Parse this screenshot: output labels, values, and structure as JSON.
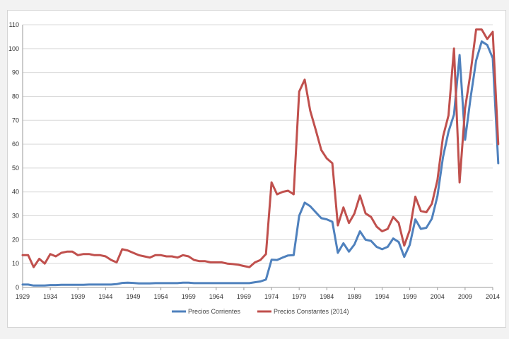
{
  "chart_data": {
    "type": "line",
    "title": "",
    "xlabel": "",
    "ylabel": "",
    "xlim": [
      1929,
      2014
    ],
    "ylim": [
      0,
      110
    ],
    "y_ticks": [
      0,
      10,
      20,
      30,
      40,
      50,
      60,
      70,
      80,
      90,
      100,
      110
    ],
    "x_ticks": [
      1929,
      1934,
      1939,
      1944,
      1949,
      1954,
      1959,
      1964,
      1969,
      1974,
      1979,
      1984,
      1989,
      1994,
      1999,
      2004,
      2009,
      2014
    ],
    "grid": "horizontal",
    "legend_position": "bottom",
    "series": [
      {
        "name": "Precios Corrientes",
        "color": "#4f81bd",
        "points": [
          [
            1929,
            1.2
          ],
          [
            1930,
            1.2
          ],
          [
            1931,
            0.8
          ],
          [
            1932,
            0.8
          ],
          [
            1933,
            0.8
          ],
          [
            1934,
            1.0
          ],
          [
            1935,
            1.0
          ],
          [
            1936,
            1.1
          ],
          [
            1937,
            1.1
          ],
          [
            1938,
            1.1
          ],
          [
            1939,
            1.1
          ],
          [
            1940,
            1.1
          ],
          [
            1941,
            1.2
          ],
          [
            1942,
            1.2
          ],
          [
            1943,
            1.2
          ],
          [
            1944,
            1.2
          ],
          [
            1945,
            1.2
          ],
          [
            1946,
            1.4
          ],
          [
            1947,
            1.9
          ],
          [
            1948,
            2.0
          ],
          [
            1949,
            1.9
          ],
          [
            1950,
            1.7
          ],
          [
            1951,
            1.7
          ],
          [
            1952,
            1.7
          ],
          [
            1953,
            1.8
          ],
          [
            1954,
            1.8
          ],
          [
            1955,
            1.8
          ],
          [
            1956,
            1.8
          ],
          [
            1957,
            1.8
          ],
          [
            1958,
            2.0
          ],
          [
            1959,
            2.0
          ],
          [
            1960,
            1.8
          ],
          [
            1961,
            1.8
          ],
          [
            1962,
            1.8
          ],
          [
            1963,
            1.8
          ],
          [
            1964,
            1.8
          ],
          [
            1965,
            1.8
          ],
          [
            1966,
            1.8
          ],
          [
            1967,
            1.8
          ],
          [
            1968,
            1.8
          ],
          [
            1969,
            1.8
          ],
          [
            1970,
            1.8
          ],
          [
            1971,
            2.2
          ],
          [
            1972,
            2.5
          ],
          [
            1973,
            3.3
          ],
          [
            1974,
            11.6
          ],
          [
            1975,
            11.5
          ],
          [
            1976,
            12.5
          ],
          [
            1977,
            13.4
          ],
          [
            1978,
            13.5
          ],
          [
            1979,
            30.0
          ],
          [
            1980,
            35.5
          ],
          [
            1981,
            34.0
          ],
          [
            1982,
            31.5
          ],
          [
            1983,
            29.0
          ],
          [
            1984,
            28.5
          ],
          [
            1985,
            27.5
          ],
          [
            1986,
            14.5
          ],
          [
            1987,
            18.5
          ],
          [
            1988,
            15.0
          ],
          [
            1989,
            18.0
          ],
          [
            1990,
            23.5
          ],
          [
            1991,
            20.0
          ],
          [
            1992,
            19.5
          ],
          [
            1993,
            17.0
          ],
          [
            1994,
            16.0
          ],
          [
            1995,
            17.0
          ],
          [
            1996,
            20.5
          ],
          [
            1997,
            19.0
          ],
          [
            1998,
            12.8
          ],
          [
            1999,
            17.8
          ],
          [
            2000,
            28.5
          ],
          [
            2001,
            24.5
          ],
          [
            2002,
            25.0
          ],
          [
            2003,
            28.8
          ],
          [
            2004,
            38.3
          ],
          [
            2005,
            54.5
          ],
          [
            2006,
            65.2
          ],
          [
            2007,
            72.4
          ],
          [
            2008,
            97.3
          ],
          [
            2009,
            61.8
          ],
          [
            2010,
            79.5
          ],
          [
            2011,
            95.0
          ],
          [
            2012,
            103.0
          ],
          [
            2013,
            101.5
          ],
          [
            2014,
            96.0
          ],
          [
            2015,
            52.0
          ]
        ]
      },
      {
        "name": "Precios Constantes (2014)",
        "color": "#c0504d",
        "points": [
          [
            1929,
            13.5
          ],
          [
            1930,
            13.5
          ],
          [
            1931,
            8.5
          ],
          [
            1932,
            12.0
          ],
          [
            1933,
            10.0
          ],
          [
            1934,
            14.0
          ],
          [
            1935,
            13.0
          ],
          [
            1936,
            14.5
          ],
          [
            1937,
            15.0
          ],
          [
            1938,
            15.0
          ],
          [
            1939,
            13.5
          ],
          [
            1940,
            14.0
          ],
          [
            1941,
            14.0
          ],
          [
            1942,
            13.5
          ],
          [
            1943,
            13.5
          ],
          [
            1944,
            13.0
          ],
          [
            1945,
            11.5
          ],
          [
            1946,
            10.5
          ],
          [
            1947,
            16.0
          ],
          [
            1948,
            15.5
          ],
          [
            1949,
            14.5
          ],
          [
            1950,
            13.5
          ],
          [
            1951,
            13.0
          ],
          [
            1952,
            12.5
          ],
          [
            1953,
            13.5
          ],
          [
            1954,
            13.5
          ],
          [
            1955,
            13.0
          ],
          [
            1956,
            13.0
          ],
          [
            1957,
            12.5
          ],
          [
            1958,
            13.5
          ],
          [
            1959,
            13.0
          ],
          [
            1960,
            11.5
          ],
          [
            1961,
            11.0
          ],
          [
            1962,
            11.0
          ],
          [
            1963,
            10.5
          ],
          [
            1964,
            10.5
          ],
          [
            1965,
            10.5
          ],
          [
            1966,
            10.0
          ],
          [
            1967,
            9.8
          ],
          [
            1968,
            9.5
          ],
          [
            1969,
            9.0
          ],
          [
            1970,
            8.5
          ],
          [
            1971,
            10.5
          ],
          [
            1972,
            11.5
          ],
          [
            1973,
            14.0
          ],
          [
            1974,
            44.0
          ],
          [
            1975,
            39.0
          ],
          [
            1976,
            40.0
          ],
          [
            1977,
            40.5
          ],
          [
            1978,
            39.0
          ],
          [
            1979,
            82.0
          ],
          [
            1980,
            87.0
          ],
          [
            1981,
            74.0
          ],
          [
            1982,
            66.0
          ],
          [
            1983,
            57.5
          ],
          [
            1984,
            54.0
          ],
          [
            1985,
            52.0
          ],
          [
            1986,
            26.0
          ],
          [
            1987,
            33.5
          ],
          [
            1988,
            27.0
          ],
          [
            1989,
            31.0
          ],
          [
            1990,
            38.5
          ],
          [
            1991,
            31.0
          ],
          [
            1992,
            29.5
          ],
          [
            1993,
            25.5
          ],
          [
            1994,
            23.5
          ],
          [
            1995,
            24.5
          ],
          [
            1996,
            29.5
          ],
          [
            1997,
            27.0
          ],
          [
            1998,
            17.5
          ],
          [
            1999,
            24.0
          ],
          [
            2000,
            38.0
          ],
          [
            2001,
            32.0
          ],
          [
            2002,
            31.5
          ],
          [
            2003,
            35.0
          ],
          [
            2004,
            45.0
          ],
          [
            2005,
            63.0
          ],
          [
            2006,
            72.0
          ],
          [
            2007,
            100.0
          ],
          [
            2008,
            44.0
          ],
          [
            2009,
            75.0
          ],
          [
            2010,
            90.0
          ],
          [
            2011,
            108.0
          ],
          [
            2012,
            108.0
          ],
          [
            2013,
            104.0
          ],
          [
            2014,
            107.0
          ],
          [
            2015,
            60.0
          ]
        ]
      }
    ]
  }
}
